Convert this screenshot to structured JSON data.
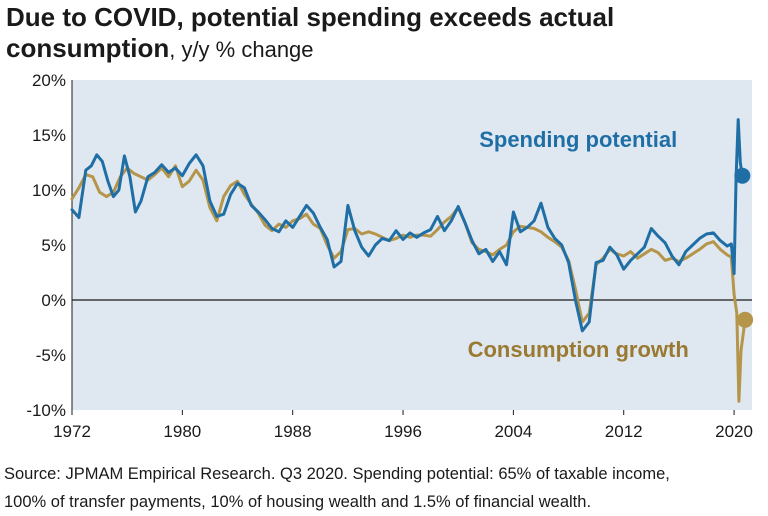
{
  "title": {
    "line1": "Due to COVID, potential spending exceeds actual",
    "line2_bold": "consumption",
    "line2_suffix": ", y/y % change"
  },
  "source": {
    "line1": "Source: JPMAM Empirical Research. Q3 2020. Spending potential: 65% of taxable income,",
    "line2": "100% of transfer payments, 10% of housing wealth and 1.5%  of financial wealth."
  },
  "chart_data": {
    "type": "line",
    "ylim": [
      -10,
      20
    ],
    "xlim": [
      1972,
      2021.3
    ],
    "y_ticks": [
      20,
      15,
      10,
      5,
      0,
      -5,
      -10
    ],
    "y_tick_labels": [
      "20%",
      "15%",
      "10%",
      "5%",
      "0%",
      "-5%",
      "-10%"
    ],
    "x_ticks": [
      1972,
      1980,
      1988,
      1996,
      2004,
      2012,
      2020
    ],
    "x_tick_labels": [
      "1972",
      "1980",
      "1988",
      "1996",
      "2004",
      "2012",
      "2020"
    ],
    "plot_background": "#dfe8f1",
    "series": [
      {
        "name": "Spending potential",
        "color": "#1f6fa6",
        "label_color": "#1f6fa6",
        "end_marker": [
          2020.6,
          11.3
        ],
        "points": [
          [
            1972.0,
            8.2
          ],
          [
            1972.5,
            7.5
          ],
          [
            1973.0,
            11.8
          ],
          [
            1973.4,
            12.2
          ],
          [
            1973.8,
            13.2
          ],
          [
            1974.2,
            12.6
          ],
          [
            1974.6,
            10.8
          ],
          [
            1975.0,
            9.4
          ],
          [
            1975.4,
            10.0
          ],
          [
            1975.8,
            13.1
          ],
          [
            1976.2,
            11.2
          ],
          [
            1976.6,
            8.0
          ],
          [
            1977.0,
            9.0
          ],
          [
            1977.5,
            11.2
          ],
          [
            1978.0,
            11.6
          ],
          [
            1978.5,
            12.3
          ],
          [
            1979.0,
            11.6
          ],
          [
            1979.5,
            12.0
          ],
          [
            1980.0,
            11.3
          ],
          [
            1980.5,
            12.4
          ],
          [
            1981.0,
            13.2
          ],
          [
            1981.5,
            12.2
          ],
          [
            1982.0,
            9.0
          ],
          [
            1982.5,
            7.6
          ],
          [
            1983.0,
            7.8
          ],
          [
            1983.5,
            9.6
          ],
          [
            1984.0,
            10.6
          ],
          [
            1984.5,
            10.2
          ],
          [
            1985.0,
            8.6
          ],
          [
            1985.5,
            8.0
          ],
          [
            1986.0,
            7.3
          ],
          [
            1986.5,
            6.5
          ],
          [
            1987.0,
            6.2
          ],
          [
            1987.5,
            7.2
          ],
          [
            1988.0,
            6.6
          ],
          [
            1988.5,
            7.6
          ],
          [
            1989.0,
            8.6
          ],
          [
            1989.5,
            7.9
          ],
          [
            1990.0,
            6.6
          ],
          [
            1990.5,
            5.5
          ],
          [
            1991.0,
            3.0
          ],
          [
            1991.5,
            3.5
          ],
          [
            1992.0,
            8.6
          ],
          [
            1992.5,
            6.3
          ],
          [
            1993.0,
            4.8
          ],
          [
            1993.5,
            4.0
          ],
          [
            1994.0,
            5.0
          ],
          [
            1994.5,
            5.6
          ],
          [
            1995.0,
            5.4
          ],
          [
            1995.5,
            6.3
          ],
          [
            1996.0,
            5.5
          ],
          [
            1996.5,
            6.1
          ],
          [
            1997.0,
            5.7
          ],
          [
            1997.5,
            6.1
          ],
          [
            1998.0,
            6.4
          ],
          [
            1998.5,
            7.6
          ],
          [
            1999.0,
            6.3
          ],
          [
            1999.5,
            7.2
          ],
          [
            2000.0,
            8.5
          ],
          [
            2000.5,
            7.0
          ],
          [
            2001.0,
            5.4
          ],
          [
            2001.5,
            4.2
          ],
          [
            2002.0,
            4.6
          ],
          [
            2002.5,
            3.5
          ],
          [
            2003.0,
            4.4
          ],
          [
            2003.5,
            3.2
          ],
          [
            2004.0,
            8.0
          ],
          [
            2004.5,
            6.2
          ],
          [
            2005.0,
            6.6
          ],
          [
            2005.5,
            7.2
          ],
          [
            2006.0,
            8.8
          ],
          [
            2006.5,
            6.6
          ],
          [
            2007.0,
            5.6
          ],
          [
            2007.5,
            5.0
          ],
          [
            2008.0,
            3.4
          ],
          [
            2008.5,
            0.0
          ],
          [
            2009.0,
            -2.8
          ],
          [
            2009.5,
            -2.0
          ],
          [
            2010.0,
            3.4
          ],
          [
            2010.5,
            3.6
          ],
          [
            2011.0,
            4.8
          ],
          [
            2011.5,
            4.1
          ],
          [
            2012.0,
            2.8
          ],
          [
            2012.5,
            3.6
          ],
          [
            2013.0,
            4.2
          ],
          [
            2013.5,
            4.8
          ],
          [
            2014.0,
            6.5
          ],
          [
            2014.5,
            5.8
          ],
          [
            2015.0,
            5.2
          ],
          [
            2015.5,
            4.0
          ],
          [
            2016.0,
            3.2
          ],
          [
            2016.5,
            4.4
          ],
          [
            2017.0,
            5.0
          ],
          [
            2017.5,
            5.6
          ],
          [
            2018.0,
            6.0
          ],
          [
            2018.5,
            6.1
          ],
          [
            2019.0,
            5.4
          ],
          [
            2019.5,
            4.9
          ],
          [
            2019.8,
            5.1
          ],
          [
            2020.0,
            2.4
          ],
          [
            2020.15,
            11.2
          ],
          [
            2020.3,
            16.4
          ],
          [
            2020.45,
            12.5
          ],
          [
            2020.6,
            11.3
          ]
        ]
      },
      {
        "name": "Consumption growth",
        "color": "#b5954a",
        "label_color": "#9a7a32",
        "end_marker": [
          2020.8,
          -1.8
        ],
        "points": [
          [
            1972.0,
            9.2
          ],
          [
            1972.5,
            10.2
          ],
          [
            1973.0,
            11.4
          ],
          [
            1973.5,
            11.2
          ],
          [
            1974.0,
            9.8
          ],
          [
            1974.5,
            9.4
          ],
          [
            1975.0,
            9.8
          ],
          [
            1975.5,
            11.2
          ],
          [
            1976.0,
            12.0
          ],
          [
            1976.5,
            11.5
          ],
          [
            1977.0,
            11.2
          ],
          [
            1977.5,
            10.9
          ],
          [
            1978.0,
            11.4
          ],
          [
            1978.5,
            12.0
          ],
          [
            1979.0,
            11.2
          ],
          [
            1979.5,
            12.2
          ],
          [
            1980.0,
            10.3
          ],
          [
            1980.5,
            10.8
          ],
          [
            1981.0,
            11.8
          ],
          [
            1981.5,
            10.9
          ],
          [
            1982.0,
            8.4
          ],
          [
            1982.5,
            7.2
          ],
          [
            1983.0,
            9.4
          ],
          [
            1983.5,
            10.4
          ],
          [
            1984.0,
            10.8
          ],
          [
            1984.5,
            9.6
          ],
          [
            1985.0,
            8.7
          ],
          [
            1985.5,
            7.9
          ],
          [
            1986.0,
            6.8
          ],
          [
            1986.5,
            6.3
          ],
          [
            1987.0,
            6.9
          ],
          [
            1987.5,
            6.6
          ],
          [
            1988.0,
            7.2
          ],
          [
            1988.5,
            7.4
          ],
          [
            1989.0,
            7.8
          ],
          [
            1989.5,
            6.9
          ],
          [
            1990.0,
            6.5
          ],
          [
            1990.5,
            5.0
          ],
          [
            1991.0,
            3.8
          ],
          [
            1991.5,
            4.4
          ],
          [
            1992.0,
            6.4
          ],
          [
            1992.5,
            6.5
          ],
          [
            1993.0,
            6.0
          ],
          [
            1993.5,
            6.2
          ],
          [
            1994.0,
            6.0
          ],
          [
            1994.5,
            5.7
          ],
          [
            1995.0,
            5.4
          ],
          [
            1995.5,
            5.6
          ],
          [
            1996.0,
            5.9
          ],
          [
            1996.5,
            5.7
          ],
          [
            1997.0,
            5.9
          ],
          [
            1997.5,
            5.9
          ],
          [
            1998.0,
            5.8
          ],
          [
            1998.5,
            6.4
          ],
          [
            1999.0,
            7.1
          ],
          [
            1999.5,
            7.6
          ],
          [
            2000.0,
            8.4
          ],
          [
            2000.5,
            7.0
          ],
          [
            2001.0,
            5.2
          ],
          [
            2001.5,
            4.6
          ],
          [
            2002.0,
            4.4
          ],
          [
            2002.5,
            4.1
          ],
          [
            2003.0,
            4.6
          ],
          [
            2003.5,
            5.0
          ],
          [
            2004.0,
            6.2
          ],
          [
            2004.5,
            6.7
          ],
          [
            2005.0,
            6.6
          ],
          [
            2005.5,
            6.5
          ],
          [
            2006.0,
            6.2
          ],
          [
            2006.5,
            5.7
          ],
          [
            2007.0,
            5.3
          ],
          [
            2007.5,
            4.8
          ],
          [
            2008.0,
            3.6
          ],
          [
            2008.5,
            1.0
          ],
          [
            2009.0,
            -2.0
          ],
          [
            2009.5,
            -1.2
          ],
          [
            2010.0,
            3.2
          ],
          [
            2010.5,
            3.8
          ],
          [
            2011.0,
            4.6
          ],
          [
            2011.5,
            4.2
          ],
          [
            2012.0,
            4.0
          ],
          [
            2012.5,
            4.4
          ],
          [
            2013.0,
            3.8
          ],
          [
            2013.5,
            4.2
          ],
          [
            2014.0,
            4.6
          ],
          [
            2014.5,
            4.3
          ],
          [
            2015.0,
            3.6
          ],
          [
            2015.5,
            3.8
          ],
          [
            2016.0,
            3.5
          ],
          [
            2016.5,
            3.8
          ],
          [
            2017.0,
            4.2
          ],
          [
            2017.5,
            4.6
          ],
          [
            2018.0,
            5.1
          ],
          [
            2018.5,
            5.3
          ],
          [
            2019.0,
            4.6
          ],
          [
            2019.5,
            4.1
          ],
          [
            2019.8,
            3.9
          ],
          [
            2020.0,
            0.5
          ],
          [
            2020.2,
            -1.2
          ],
          [
            2020.35,
            -9.2
          ],
          [
            2020.5,
            -4.6
          ],
          [
            2020.8,
            -1.8
          ]
        ]
      }
    ],
    "labels": [
      {
        "text": "Spending potential",
        "series": 0,
        "x": 2008.7,
        "y": 13.9,
        "anchor": "middle"
      },
      {
        "text": "Consumption growth",
        "series": 1,
        "x": 2008.7,
        "y": -5.2,
        "anchor": "middle"
      }
    ]
  }
}
